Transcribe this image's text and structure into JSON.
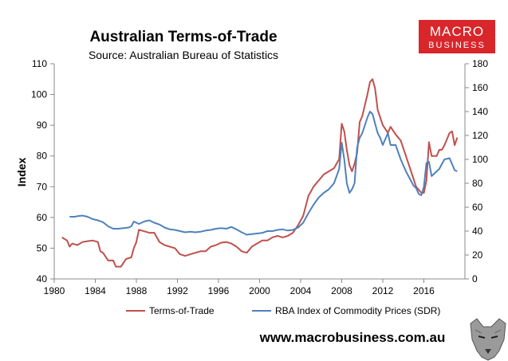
{
  "brand": {
    "logo_line1": "MACRO",
    "logo_line2": "BUSINESS",
    "logo_color": "#d9262b",
    "website": "www.macrobusiness.com.au",
    "mascot_icon": "wolf-icon"
  },
  "chart_data": {
    "type": "line",
    "title": "Australian Terms-of-Trade",
    "subtitle": "Source: Australian Bureau of Statistics",
    "ylabel": "Index",
    "xlim": [
      1980,
      2020
    ],
    "ylim_left": [
      40,
      110
    ],
    "ylim_right": [
      0,
      180
    ],
    "x_ticks": [
      "1980",
      "1984",
      "1988",
      "1992",
      "1996",
      "2000",
      "2004",
      "2008",
      "2012",
      "2016"
    ],
    "y_left_ticks": [
      "40",
      "50",
      "60",
      "70",
      "80",
      "90",
      "100",
      "110"
    ],
    "y_right_ticks": [
      "0",
      "20",
      "40",
      "60",
      "80",
      "100",
      "120",
      "140",
      "160",
      "180"
    ],
    "grid": false,
    "legend_position": "bottom",
    "series": [
      {
        "name": "Terms-of-Trade",
        "axis": "left",
        "color": "#c0504d",
        "x": [
          1980.75,
          1981.25,
          1981.5,
          1981.75,
          1982.25,
          1982.75,
          1983.25,
          1983.75,
          1984.25,
          1984.5,
          1984.75,
          1985.25,
          1985.75,
          1986.0,
          1986.5,
          1987.0,
          1987.5,
          1987.75,
          1988.0,
          1988.25,
          1988.75,
          1989.25,
          1989.75,
          1990.25,
          1990.75,
          1991.25,
          1991.75,
          1992.25,
          1992.75,
          1993.25,
          1993.75,
          1994.25,
          1994.75,
          1995.25,
          1995.75,
          1996.25,
          1996.75,
          1997.25,
          1997.75,
          1998.25,
          1998.75,
          1999.25,
          1999.75,
          2000.25,
          2000.75,
          2001.25,
          2001.75,
          2002.25,
          2002.75,
          2003.25,
          2003.75,
          2004.25,
          2004.75,
          2005.25,
          2005.75,
          2006.25,
          2006.75,
          2007.25,
          2007.75,
          2008.0,
          2008.25,
          2008.5,
          2008.75,
          2009.0,
          2009.25,
          2009.5,
          2009.75,
          2010.0,
          2010.5,
          2010.75,
          2011.0,
          2011.25,
          2011.5,
          2011.75,
          2012.0,
          2012.5,
          2012.75,
          2013.25,
          2013.75,
          2014.25,
          2014.75,
          2015.25,
          2015.75,
          2016.0,
          2016.25,
          2016.5,
          2016.75,
          2017.25,
          2017.5,
          2017.75,
          2018.0,
          2018.5,
          2018.75,
          2019.0,
          2019.25
        ],
        "y": [
          53.5,
          52.5,
          50.5,
          51.5,
          51.0,
          52.0,
          52.3,
          52.5,
          52.0,
          49.0,
          48.5,
          46.0,
          46.0,
          44.0,
          44.0,
          46.5,
          47.0,
          50.0,
          52.0,
          56.0,
          55.5,
          55.0,
          55.0,
          52.0,
          51.0,
          50.5,
          50.0,
          48.0,
          47.5,
          48.0,
          48.5,
          49.0,
          49.0,
          50.5,
          51.0,
          51.8,
          52.0,
          51.5,
          50.5,
          49.0,
          48.5,
          50.5,
          51.5,
          52.5,
          52.5,
          53.5,
          54.0,
          53.5,
          54.0,
          55.0,
          57.5,
          60.5,
          67.0,
          70.0,
          72.0,
          74.0,
          75.0,
          76.0,
          79.0,
          90.5,
          88.0,
          82.0,
          77.0,
          75.0,
          77.5,
          81.0,
          91.0,
          93.0,
          100.0,
          104.0,
          105.0,
          102.0,
          95.0,
          92.5,
          90.0,
          87.5,
          89.5,
          87.0,
          85.0,
          80.0,
          75.0,
          70.0,
          68.0,
          68.0,
          72.0,
          84.5,
          80.0,
          80.0,
          82.0,
          82.0,
          83.5,
          87.5,
          88.0,
          83.5,
          86.0
        ]
      },
      {
        "name": "RBA Index of Commodity Prices (SDR)",
        "axis": "right",
        "color": "#4f81bd",
        "x": [
          1981.5,
          1982.0,
          1982.25,
          1982.75,
          1983.25,
          1983.75,
          1984.25,
          1984.75,
          1985.25,
          1985.75,
          1986.25,
          1986.75,
          1987.25,
          1987.5,
          1987.75,
          1988.25,
          1988.75,
          1989.25,
          1989.75,
          1990.25,
          1990.75,
          1991.25,
          1991.75,
          1992.25,
          1992.75,
          1993.25,
          1993.75,
          1994.25,
          1994.75,
          1995.25,
          1995.75,
          1996.25,
          1996.75,
          1997.25,
          1997.75,
          1998.25,
          1998.75,
          1999.25,
          1999.75,
          2000.25,
          2000.75,
          2001.25,
          2001.75,
          2002.25,
          2002.75,
          2003.25,
          2003.75,
          2004.25,
          2004.75,
          2005.25,
          2005.75,
          2006.25,
          2006.75,
          2007.25,
          2007.75,
          2008.0,
          2008.25,
          2008.5,
          2008.75,
          2009.0,
          2009.25,
          2009.5,
          2009.75,
          2010.0,
          2010.5,
          2010.75,
          2011.0,
          2011.25,
          2011.5,
          2011.75,
          2012.0,
          2012.5,
          2012.75,
          2013.25,
          2013.75,
          2014.25,
          2014.75,
          2015.0,
          2015.25,
          2015.5,
          2015.75,
          2016.0,
          2016.25,
          2016.5,
          2016.75,
          2017.25,
          2017.5,
          2017.75,
          2018.0,
          2018.5,
          2018.75,
          2019.0,
          2019.25
        ],
        "y": [
          52.0,
          52.0,
          52.5,
          53.0,
          52.0,
          50.0,
          49.0,
          47.5,
          44.0,
          42.0,
          42.0,
          42.5,
          43.0,
          44.0,
          48.0,
          46.0,
          48.0,
          49.0,
          47.0,
          45.5,
          43.0,
          41.5,
          41.0,
          40.0,
          39.0,
          39.5,
          39.0,
          39.5,
          40.5,
          41.0,
          42.0,
          42.5,
          42.0,
          43.5,
          41.5,
          39.0,
          37.0,
          37.5,
          38.0,
          38.5,
          40.0,
          40.0,
          41.0,
          41.5,
          40.5,
          41.0,
          43.0,
          47.0,
          55.0,
          62.0,
          68.0,
          72.0,
          75.0,
          80.0,
          92.0,
          114.0,
          100.0,
          80.0,
          72.0,
          75.0,
          80.0,
          110.0,
          118.0,
          122.0,
          135.0,
          140.0,
          138.0,
          130.0,
          122.0,
          118.0,
          112.0,
          122.0,
          112.0,
          112.0,
          100.0,
          90.0,
          82.0,
          78.0,
          76.0,
          71.0,
          70.0,
          77.0,
          97.0,
          98.0,
          86.0,
          90.0,
          92.0,
          96.0,
          100.0,
          101.0,
          96.0,
          91.0,
          90.0
        ]
      }
    ]
  }
}
